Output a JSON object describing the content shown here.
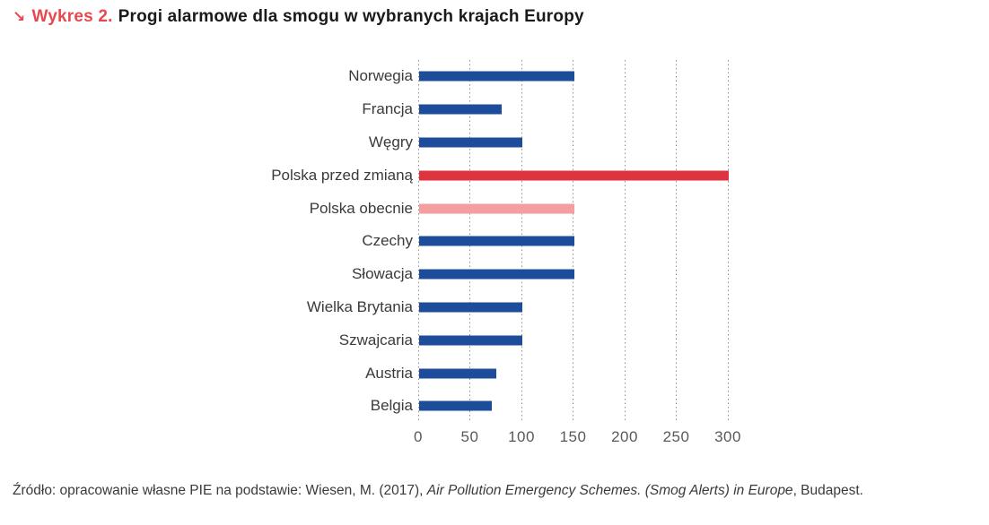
{
  "title": {
    "marker": "↘",
    "label": "Wykres 2.",
    "text": "Progi alarmowe dla smogu w wybranych krajach Europy"
  },
  "chart_data": {
    "type": "bar",
    "orientation": "horizontal",
    "title": "Progi alarmowe dla smogu w wybranych krajach Europy",
    "categories": [
      "Norwegia",
      "Francja",
      "Węgry",
      "Polska przed zmianą",
      "Polska obecnie",
      "Czechy",
      "Słowacja",
      "Wielka Brytania",
      "Szwajcaria",
      "Austria",
      "Belgia"
    ],
    "values": [
      150,
      80,
      100,
      300,
      150,
      150,
      150,
      100,
      100,
      75,
      70
    ],
    "bar_colors": [
      "#1d4d9a",
      "#1d4d9a",
      "#1d4d9a",
      "#de3440",
      "#f59ea0",
      "#1d4d9a",
      "#1d4d9a",
      "#1d4d9a",
      "#1d4d9a",
      "#1d4d9a",
      "#1d4d9a"
    ],
    "xlim": [
      0,
      300
    ],
    "x_ticks": [
      "0",
      "50",
      "100",
      "150",
      "200",
      "250",
      "300"
    ],
    "grid": "vertical-dotted",
    "legend": "none",
    "xlabel": "",
    "ylabel": ""
  },
  "source": {
    "prefix": "Źródło: opracowanie własne PIE na podstawie: Wiesen, M. (2017), ",
    "italic": "Air Pollution Emergency Schemes. (Smog Alerts) in Europe",
    "suffix": ", Budapest."
  },
  "colors": {
    "bar_blue": "#1d4d9a",
    "bar_red": "#de3440",
    "bar_pink": "#f59ea0",
    "gridline": "#8f8f8f",
    "axis_label": "#59595b",
    "category_label": "#3a3a3a",
    "title_accent": "#e8484d",
    "title_text": "#1a1a1a",
    "background": "#ffffff"
  }
}
